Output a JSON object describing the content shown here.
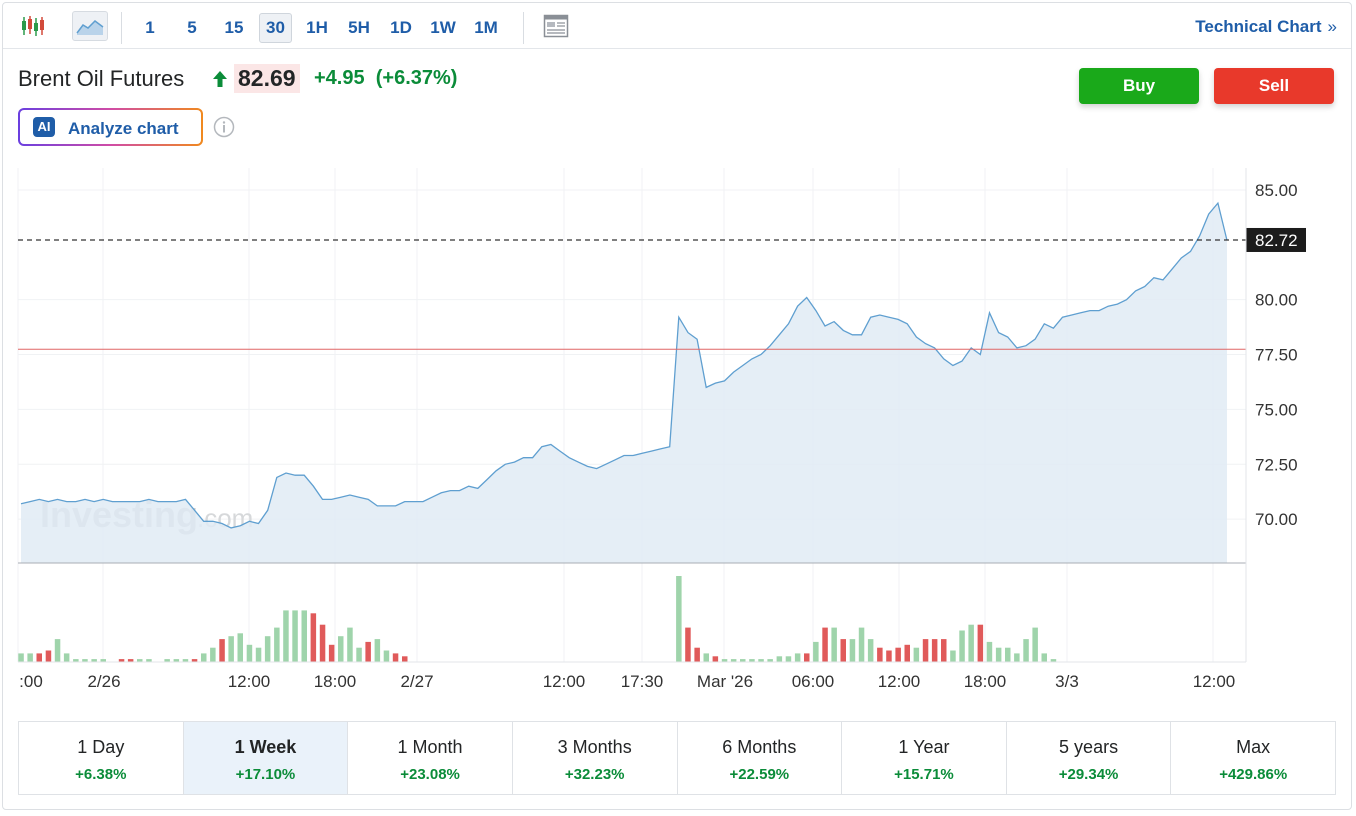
{
  "toolbar": {
    "intervals": [
      "1",
      "5",
      "15",
      "30",
      "1H",
      "5H",
      "1D",
      "1W",
      "1M"
    ],
    "active_interval": "30",
    "technical_chart_label": "Technical Chart",
    "technical_chart_chevron": "»",
    "icons": [
      "candlestick-icon",
      "area-chart-icon",
      "layout-icon",
      "arrow-up-icon",
      "info-icon"
    ]
  },
  "instrument": {
    "name": "Brent Oil Futures",
    "price": "82.69",
    "change": "+4.95",
    "change_pct": "(+6.37%)"
  },
  "actions": {
    "buy": "Buy",
    "sell": "Sell"
  },
  "analyze": {
    "badge": "AI",
    "label": "Analyze chart"
  },
  "colors": {
    "line": "#5f9fd0",
    "area": "#e1ebf4",
    "positive": "#0b8c39",
    "vol_up": "#9fd4ab",
    "vol_down": "#e05a5a",
    "prev_close_line": "#e06666",
    "buy": "#1aa91a",
    "sell": "#e8392b",
    "link": "#1f5da8"
  },
  "chart_data": {
    "type": "area",
    "ylim": [
      68,
      86
    ],
    "y_ticks": [
      "85.00",
      "80.00",
      "77.50",
      "75.00",
      "72.50",
      "70.00"
    ],
    "x_tick_labels": [
      ":00",
      "2/26",
      "12:00",
      "18:00",
      "2/27",
      "12:00",
      "17:30",
      "Mar '26",
      "06:00",
      "12:00",
      "18:00",
      "3/3",
      "12:00"
    ],
    "current_price_label": "82.72",
    "current_price": 82.72,
    "previous_close": 77.74,
    "watermark": "Investing.com",
    "price_series": [
      70.7,
      70.8,
      70.9,
      70.8,
      70.9,
      70.8,
      70.8,
      70.9,
      70.8,
      70.9,
      70.8,
      70.8,
      70.8,
      70.8,
      70.9,
      70.8,
      70.8,
      70.8,
      70.9,
      70.4,
      69.9,
      69.9,
      69.8,
      69.6,
      69.7,
      69.9,
      69.8,
      70.4,
      71.9,
      72.1,
      72.0,
      72.0,
      71.5,
      70.9,
      70.9,
      71.0,
      71.1,
      71.0,
      70.9,
      70.6,
      70.6,
      70.6,
      70.8,
      70.8,
      70.8,
      71.0,
      71.2,
      71.3,
      71.3,
      71.5,
      71.4,
      71.8,
      72.2,
      72.5,
      72.6,
      72.8,
      72.8,
      73.3,
      73.4,
      73.1,
      72.8,
      72.6,
      72.4,
      72.3,
      72.5,
      72.7,
      72.9,
      72.9,
      73.0,
      73.1,
      73.2,
      73.3,
      79.2,
      78.5,
      78.2,
      76.0,
      76.2,
      76.3,
      76.7,
      77.0,
      77.3,
      77.5,
      77.9,
      78.4,
      78.9,
      79.7,
      80.1,
      79.5,
      78.8,
      79.0,
      78.6,
      78.4,
      78.4,
      79.2,
      79.3,
      79.2,
      79.1,
      78.9,
      78.3,
      78.0,
      77.8,
      77.3,
      77.0,
      77.2,
      77.8,
      77.5,
      79.4,
      78.5,
      78.3,
      77.8,
      77.9,
      78.2,
      78.9,
      78.7,
      79.2,
      79.3,
      79.4,
      79.5,
      79.5,
      79.7,
      79.8,
      80.0,
      80.4,
      80.6,
      81.0,
      80.9,
      81.4,
      81.9,
      82.2,
      82.9,
      83.9,
      84.4,
      82.7
    ],
    "volume_up": [
      true,
      true,
      false,
      false,
      true,
      true,
      true,
      true,
      true,
      true,
      false,
      false,
      false,
      true,
      true,
      true,
      true,
      true,
      true,
      false,
      true,
      true,
      false,
      true,
      true,
      true,
      true,
      true,
      true,
      true,
      true,
      true,
      false,
      false,
      false,
      true,
      true,
      true,
      false,
      true,
      true,
      false,
      false,
      false,
      false,
      true,
      true,
      true,
      true,
      true,
      true,
      true,
      true,
      true,
      true,
      true,
      true,
      true,
      true,
      true,
      true,
      true,
      true,
      true,
      true,
      true,
      true,
      true,
      true,
      true,
      true,
      true,
      true,
      false,
      false,
      true,
      false,
      true,
      true,
      true,
      true,
      true,
      true,
      true,
      true,
      true,
      false,
      true,
      false,
      true,
      false,
      true,
      true,
      true,
      false,
      false,
      false,
      false,
      true,
      false,
      false,
      false,
      true,
      true,
      true,
      false,
      true,
      true,
      true,
      true,
      true,
      true,
      true,
      true,
      true,
      true,
      true,
      true,
      true,
      true,
      true,
      true,
      true,
      true,
      true,
      true,
      true,
      true,
      true,
      true,
      true,
      true,
      true,
      true,
      true
    ],
    "volume": [
      3,
      3,
      3,
      4,
      8,
      3,
      1,
      1,
      1,
      1,
      0,
      1,
      1,
      1,
      1,
      0,
      1,
      1,
      1,
      1,
      3,
      5,
      8,
      9,
      10,
      6,
      5,
      9,
      12,
      18,
      18,
      18,
      17,
      13,
      6,
      9,
      12,
      5,
      7,
      8,
      4,
      3,
      2,
      0,
      0,
      0,
      0,
      0,
      0,
      0,
      0,
      0,
      0,
      0,
      0,
      0,
      0,
      0,
      0,
      0,
      0,
      0,
      0,
      0,
      0,
      0,
      0,
      0,
      0,
      0,
      0,
      0,
      30,
      12,
      5,
      3,
      2,
      1,
      1,
      1,
      1,
      1,
      1,
      2,
      2,
      3,
      3,
      7,
      12,
      12,
      8,
      8,
      12,
      8,
      5,
      4,
      5,
      6,
      5,
      8,
      8,
      8,
      4,
      11,
      13,
      13,
      7,
      5,
      5,
      3,
      8,
      12,
      3,
      1,
      0,
      0,
      0,
      0,
      0,
      0,
      0,
      0,
      0,
      0,
      0,
      0,
      0,
      0,
      0,
      0,
      0,
      0,
      0,
      0,
      0
    ]
  },
  "periods": [
    {
      "label": "1 Day",
      "value": "+6.38%"
    },
    {
      "label": "1 Week",
      "value": "+17.10%"
    },
    {
      "label": "1 Month",
      "value": "+23.08%"
    },
    {
      "label": "3 Months",
      "value": "+32.23%"
    },
    {
      "label": "6 Months",
      "value": "+22.59%"
    },
    {
      "label": "1 Year",
      "value": "+15.71%"
    },
    {
      "label": "5 years",
      "value": "+29.34%"
    },
    {
      "label": "Max",
      "value": "+429.86%"
    }
  ],
  "active_period": "1 Week"
}
